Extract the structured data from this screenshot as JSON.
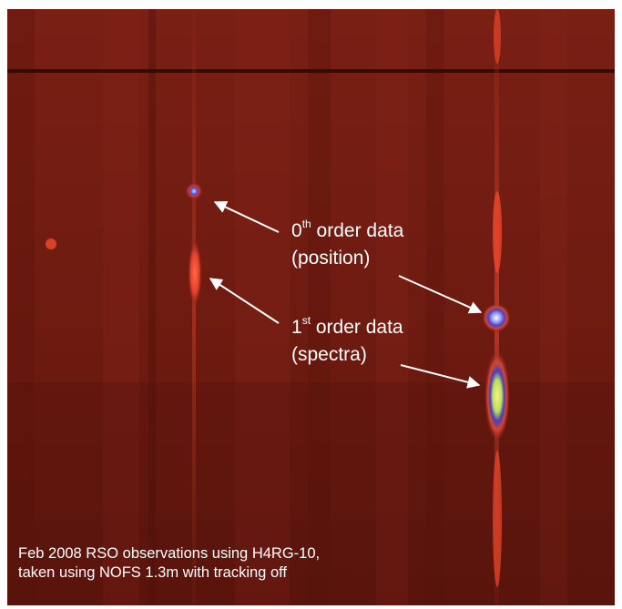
{
  "annotations": {
    "zeroth_order": {
      "prefix": "0",
      "superscript": "th",
      "suffix": " order data",
      "detail": "(position)"
    },
    "first_order": {
      "prefix": "1",
      "superscript": "st",
      "suffix": " order data",
      "detail": "(spectra)"
    }
  },
  "caption": {
    "line1": "Feb 2008 RSO observations using H4RG-10,",
    "line2": "taken using NOFS 1.3m with tracking off"
  },
  "colors": {
    "background": "#6e1a10",
    "streak": "#e8452a",
    "core_hot": "#ffe36a",
    "core_halo": "#4a3fb8",
    "text": "#ffffff"
  }
}
